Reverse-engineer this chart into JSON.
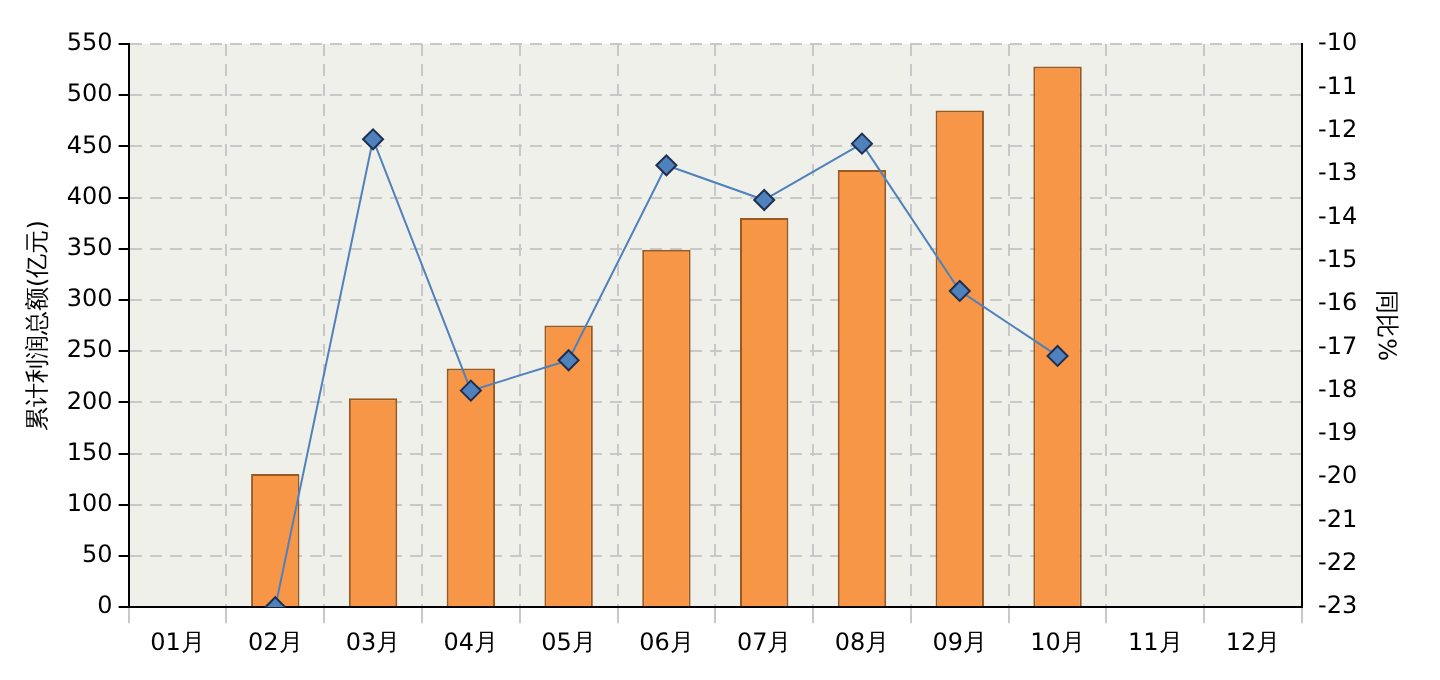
{
  "chart_data": {
    "type": "bar",
    "ylabel": "累计利润总额(亿元)",
    "y2label": "同比%",
    "categories": [
      "01月",
      "02月",
      "03月",
      "04月",
      "05月",
      "06月",
      "07月",
      "08月",
      "09月",
      "10月",
      "11月",
      "12月"
    ],
    "series": [
      {
        "color": "#f79646",
        "values": [
          null,
          130,
          204,
          233,
          275,
          349,
          380,
          427,
          485,
          528,
          null,
          null
        ]
      },
      {
        "type": "line",
        "axis": "y2",
        "color": "#4f81bd",
        "marker": "diamond",
        "values": [
          null,
          -23,
          -12.2,
          -18,
          -17.3,
          -12.8,
          -13.6,
          -12.3,
          -15.7,
          -17.2,
          null,
          null
        ]
      }
    ],
    "ylim": [
      0,
      550
    ],
    "yticks": [
      0,
      50,
      100,
      150,
      200,
      250,
      300,
      350,
      400,
      450,
      500,
      550
    ],
    "y2lim": [
      -23,
      -10
    ],
    "y2ticks": [
      -23,
      -22,
      -21,
      -20,
      -19,
      -18,
      -17,
      -16,
      -15,
      -14,
      -13,
      -12,
      -11,
      -10
    ],
    "grid": true,
    "legend": false
  }
}
